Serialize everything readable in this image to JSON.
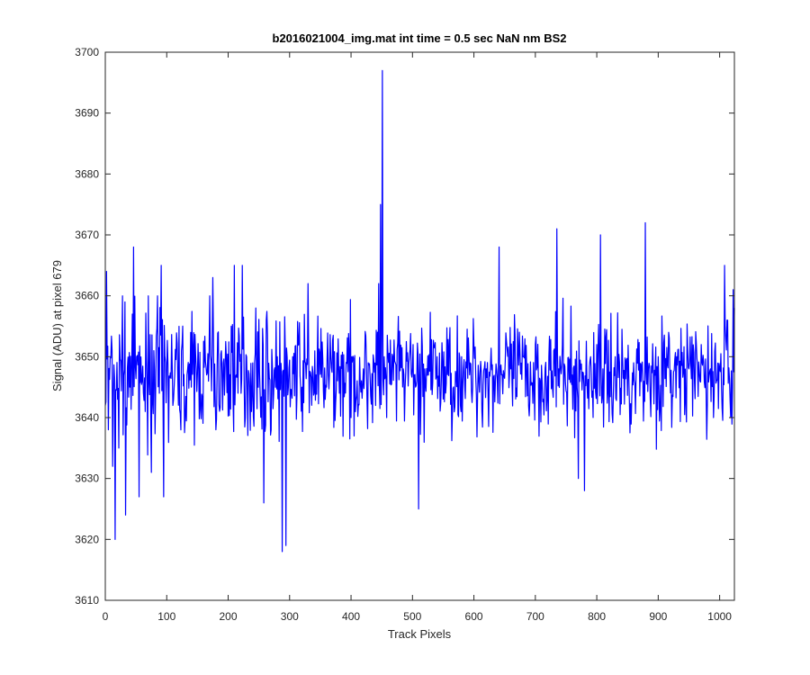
{
  "chart_data": {
    "type": "line",
    "title": "b2016021004_img.mat int time = 0.5 sec  NaN nm BS2",
    "xlabel": "Track Pixels",
    "ylabel": "Signal (ADU) at pixel 679",
    "xlim": [
      0,
      1024
    ],
    "ylim": [
      3610,
      3700
    ],
    "xticks": [
      0,
      100,
      200,
      300,
      400,
      500,
      600,
      700,
      800,
      900,
      1000
    ],
    "yticks": [
      3610,
      3620,
      3630,
      3640,
      3650,
      3660,
      3670,
      3680,
      3690,
      3700
    ],
    "grid": false,
    "box": true,
    "series": [
      {
        "color": "#0000ff",
        "noise_seed": 7,
        "noise_step": 1,
        "noise_center": 3647,
        "noise_spread": 4.5,
        "points": [
          [
            0,
            3642
          ],
          [
            2,
            3664
          ],
          [
            5,
            3638
          ],
          [
            8,
            3650
          ],
          [
            12,
            3632
          ],
          [
            16,
            3620
          ],
          [
            22,
            3635
          ],
          [
            28,
            3660
          ],
          [
            33,
            3624
          ],
          [
            40,
            3645
          ],
          [
            44,
            3657
          ],
          [
            46,
            3668
          ],
          [
            51,
            3650
          ],
          [
            55,
            3627
          ],
          [
            60,
            3646
          ],
          [
            65,
            3641
          ],
          [
            70,
            3660
          ],
          [
            75,
            3631
          ],
          [
            79,
            3651
          ],
          [
            85,
            3660
          ],
          [
            88,
            3644
          ],
          [
            91,
            3665
          ],
          [
            95,
            3627
          ],
          [
            100,
            3648
          ],
          [
            110,
            3642
          ],
          [
            130,
            3640
          ],
          [
            140,
            3645
          ],
          [
            165,
            3647
          ],
          [
            170,
            3660
          ],
          [
            175,
            3663
          ],
          [
            180,
            3638
          ],
          [
            190,
            3647
          ],
          [
            205,
            3655
          ],
          [
            210,
            3665
          ],
          [
            216,
            3644
          ],
          [
            223,
            3665
          ],
          [
            230,
            3650
          ],
          [
            238,
            3641
          ],
          [
            245,
            3658
          ],
          [
            252,
            3644
          ],
          [
            258,
            3626
          ],
          [
            262,
            3656
          ],
          [
            270,
            3638
          ],
          [
            280,
            3650
          ],
          [
            288,
            3618
          ],
          [
            294,
            3619
          ],
          [
            298,
            3645
          ],
          [
            305,
            3650
          ],
          [
            320,
            3645
          ],
          [
            330,
            3662
          ],
          [
            340,
            3644
          ],
          [
            360,
            3645
          ],
          [
            380,
            3648
          ],
          [
            400,
            3640
          ],
          [
            420,
            3648
          ],
          [
            428,
            3649
          ],
          [
            440,
            3642
          ],
          [
            445,
            3662
          ],
          [
            448,
            3675
          ],
          [
            451,
            3697
          ],
          [
            454,
            3650
          ],
          [
            458,
            3640
          ],
          [
            468,
            3650
          ],
          [
            485,
            3648
          ],
          [
            495,
            3650
          ],
          [
            505,
            3645
          ],
          [
            510,
            3625
          ],
          [
            520,
            3648
          ],
          [
            540,
            3650
          ],
          [
            560,
            3652
          ],
          [
            580,
            3650
          ],
          [
            600,
            3652
          ],
          [
            620,
            3648
          ],
          [
            640,
            3650
          ],
          [
            641,
            3668
          ],
          [
            645,
            3647
          ],
          [
            660,
            3648
          ],
          [
            680,
            3650
          ],
          [
            700,
            3652
          ],
          [
            730,
            3651
          ],
          [
            735,
            3671
          ],
          [
            738,
            3648
          ],
          [
            760,
            3647
          ],
          [
            770,
            3630
          ],
          [
            780,
            3628
          ],
          [
            790,
            3650
          ],
          [
            800,
            3652
          ],
          [
            806,
            3670
          ],
          [
            810,
            3648
          ],
          [
            830,
            3650
          ],
          [
            860,
            3649
          ],
          [
            879,
            3672
          ],
          [
            884,
            3648
          ],
          [
            900,
            3650
          ],
          [
            930,
            3650
          ],
          [
            950,
            3648
          ],
          [
            970,
            3652
          ],
          [
            985,
            3648
          ],
          [
            990,
            3640
          ],
          [
            1000,
            3648
          ],
          [
            1008,
            3665
          ],
          [
            1012,
            3656
          ],
          [
            1018,
            3640
          ],
          [
            1022,
            3661
          ],
          [
            1024,
            3658
          ]
        ]
      }
    ]
  }
}
